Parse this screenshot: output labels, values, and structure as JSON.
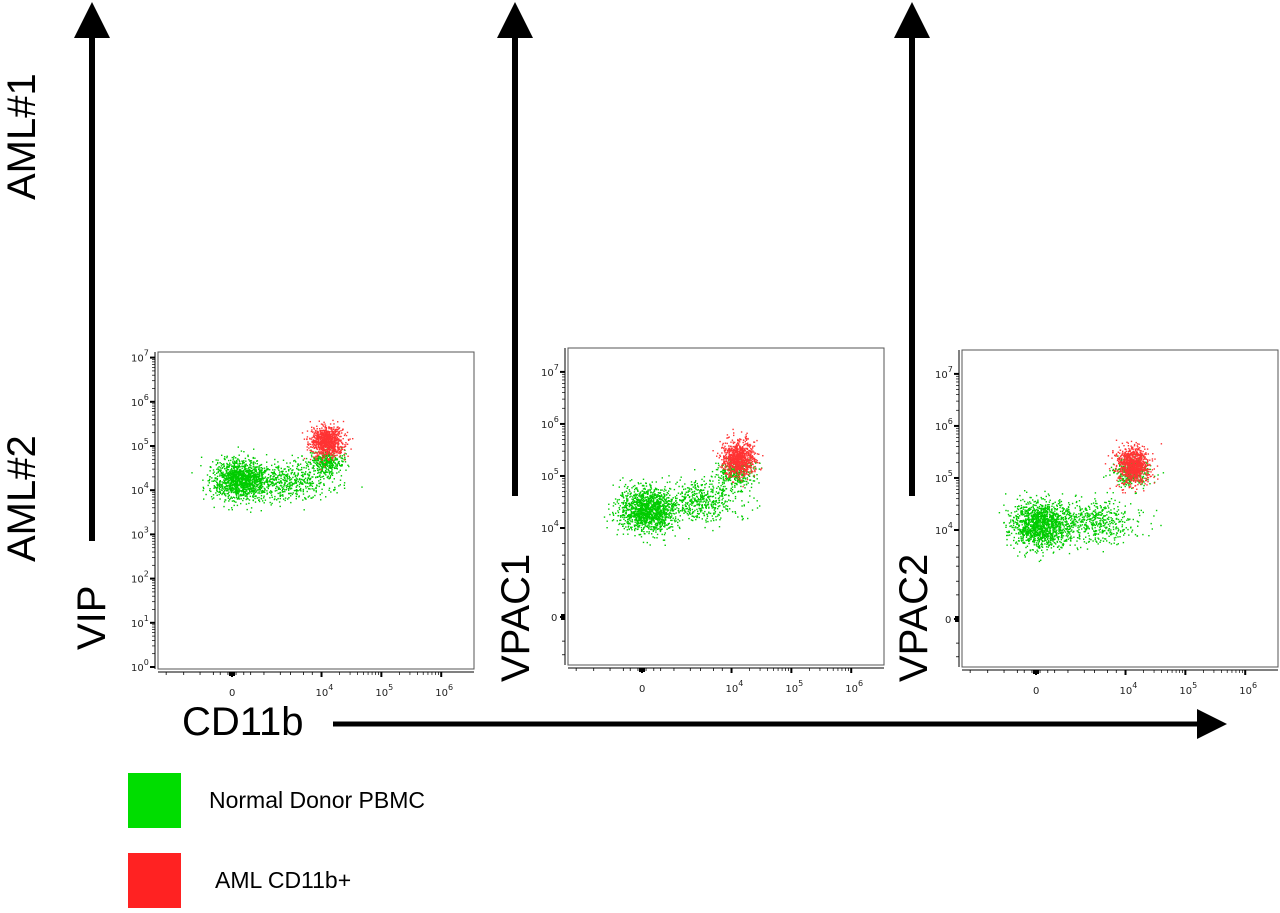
{
  "row_labels": [
    "AML#1",
    "AML#2"
  ],
  "x_axis_label": "CD11b",
  "legend": [
    {
      "label": "Normal Donor PBMC",
      "color": "#00dd00"
    },
    {
      "label": "AML CD11b+",
      "color": "#ff2222"
    }
  ],
  "chart_data": [
    {
      "type": "scatter",
      "ylabel": "VIP",
      "xlabel": "CD11b",
      "x_scale": "biexponential",
      "y_scale": "log",
      "x_ticks": [
        {
          "base": "0",
          "exp": ""
        },
        {
          "base": "10",
          "exp": "4"
        },
        {
          "base": "10",
          "exp": "5"
        },
        {
          "base": "10",
          "exp": "6"
        }
      ],
      "x_tick_values": [
        0,
        10000,
        100000,
        1000000
      ],
      "y_ticks": [
        {
          "base": "10",
          "exp": "0"
        },
        {
          "base": "10",
          "exp": "1"
        },
        {
          "base": "10",
          "exp": "2"
        },
        {
          "base": "10",
          "exp": "3"
        },
        {
          "base": "10",
          "exp": "4"
        },
        {
          "base": "10",
          "exp": "5"
        },
        {
          "base": "10",
          "exp": "6"
        },
        {
          "base": "10",
          "exp": "7"
        }
      ],
      "y_tick_values": [
        1,
        10,
        100,
        1000,
        10000,
        100000,
        1000000,
        10000000
      ],
      "ylim": [
        1,
        10000000
      ],
      "series": [
        {
          "name": "Normal Donor PBMC",
          "color": "#00cc00",
          "populations": [
            {
              "x_median": 200,
              "y_median": 18000
            },
            {
              "x_median": 3000,
              "y_median": 16000
            },
            {
              "x_median": 12000,
              "y_median": 45000
            }
          ]
        },
        {
          "name": "AML CD11b+",
          "color": "#ff3333",
          "populations": [
            {
              "x_median": 12000,
              "y_median": 130000
            }
          ]
        }
      ]
    },
    {
      "type": "scatter",
      "ylabel": "VPAC1",
      "xlabel": "CD11b",
      "x_scale": "biexponential",
      "y_scale": "biexponential",
      "x_ticks": [
        {
          "base": "0",
          "exp": ""
        },
        {
          "base": "10",
          "exp": "4"
        },
        {
          "base": "10",
          "exp": "5"
        },
        {
          "base": "10",
          "exp": "6"
        }
      ],
      "x_tick_values": [
        0,
        10000,
        100000,
        1000000
      ],
      "y_ticks": [
        {
          "base": "0",
          "exp": ""
        },
        {
          "base": "10",
          "exp": "4"
        },
        {
          "base": "10",
          "exp": "5"
        },
        {
          "base": "10",
          "exp": "6"
        },
        {
          "base": "10",
          "exp": "7"
        }
      ],
      "y_tick_values": [
        0,
        10000,
        100000,
        1000000,
        10000000
      ],
      "series": [
        {
          "name": "Normal Donor PBMC",
          "color": "#00cc00",
          "populations": [
            {
              "x_median": 100,
              "y_median": 22000
            },
            {
              "x_median": 3000,
              "y_median": 35000
            },
            {
              "x_median": 12000,
              "y_median": 120000
            }
          ]
        },
        {
          "name": "AML CD11b+",
          "color": "#ff3333",
          "populations": [
            {
              "x_median": 13000,
              "y_median": 220000
            }
          ]
        }
      ]
    },
    {
      "type": "scatter",
      "ylabel": "VPAC2",
      "xlabel": "CD11b",
      "x_scale": "biexponential",
      "y_scale": "biexponential",
      "x_ticks": [
        {
          "base": "0",
          "exp": ""
        },
        {
          "base": "10",
          "exp": "4"
        },
        {
          "base": "10",
          "exp": "5"
        },
        {
          "base": "10",
          "exp": "6"
        }
      ],
      "x_tick_values": [
        0,
        10000,
        100000,
        1000000
      ],
      "y_ticks": [
        {
          "base": "0",
          "exp": ""
        },
        {
          "base": "10",
          "exp": "4"
        },
        {
          "base": "10",
          "exp": "5"
        },
        {
          "base": "10",
          "exp": "6"
        },
        {
          "base": "10",
          "exp": "7"
        }
      ],
      "y_tick_values": [
        0,
        10000,
        100000,
        1000000,
        10000000
      ],
      "series": [
        {
          "name": "Normal Donor PBMC",
          "color": "#00cc00",
          "populations": [
            {
              "x_median": 100,
              "y_median": 13000
            },
            {
              "x_median": 3000,
              "y_median": 15000
            },
            {
              "x_median": 12000,
              "y_median": 130000
            }
          ]
        },
        {
          "name": "AML CD11b+",
          "color": "#ff3333",
          "populations": [
            {
              "x_median": 13000,
              "y_median": 180000
            }
          ]
        }
      ]
    }
  ]
}
